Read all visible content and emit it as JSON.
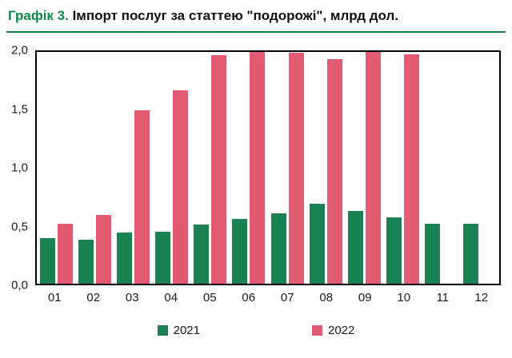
{
  "header": {
    "prefix": "Графік 3.",
    "title": " Імпорт послуг за статтею \"подорожі\", млрд дол."
  },
  "chart_data": {
    "type": "bar",
    "title": "Імпорт послуг за статтею \"подорожі\", млрд дол.",
    "categories": [
      "01",
      "02",
      "03",
      "04",
      "05",
      "06",
      "07",
      "08",
      "09",
      "10",
      "11",
      "12"
    ],
    "series": [
      {
        "name": "2021",
        "color": "#1b8150",
        "values": [
          0.39,
          0.38,
          0.44,
          0.45,
          0.51,
          0.56,
          0.61,
          0.69,
          0.63,
          0.57,
          0.52,
          0.52
        ]
      },
      {
        "name": "2022",
        "color": "#e25b72",
        "values": [
          0.52,
          0.59,
          1.5,
          1.67,
          1.97,
          2.0,
          1.99,
          1.94,
          2.0,
          1.98,
          null,
          null
        ]
      }
    ],
    "ylim": [
      0,
      2.0
    ],
    "y_ticks": [
      {
        "value": 0.0,
        "label": "0,0"
      },
      {
        "value": 0.5,
        "label": "0,5"
      },
      {
        "value": 1.0,
        "label": "1,0"
      },
      {
        "value": 1.5,
        "label": "1,5"
      },
      {
        "value": 2.0,
        "label": "2,0"
      }
    ],
    "grid": false,
    "legend_position": "bottom"
  },
  "accent": {
    "title_green": "#0a8a46",
    "bar_green": "#1b8150",
    "bar_pink": "#e25b72"
  }
}
